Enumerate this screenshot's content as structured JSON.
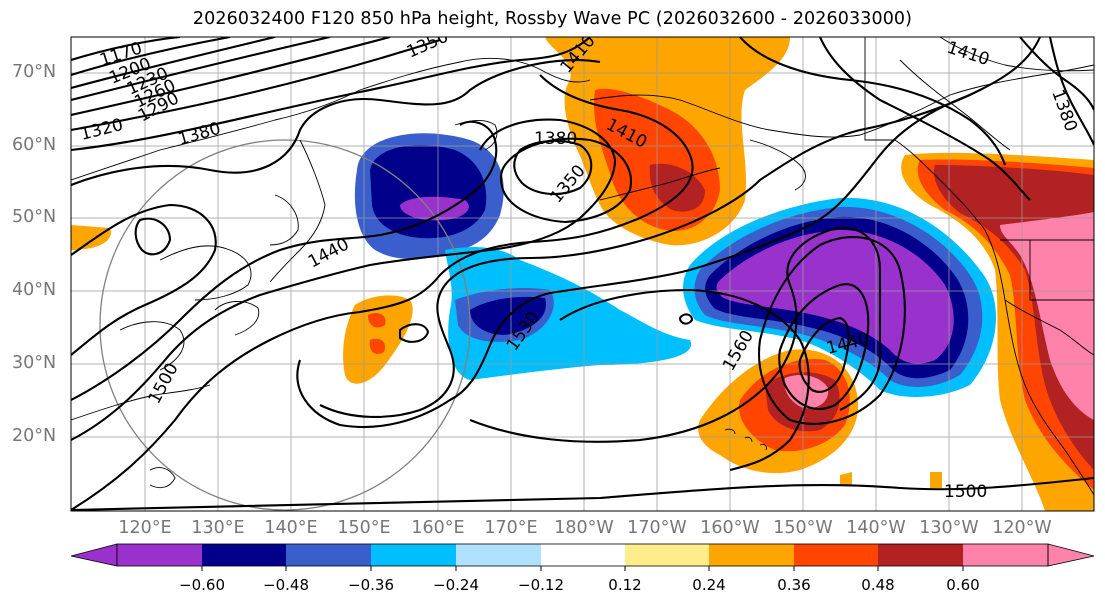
{
  "title": "2026032400 F120 850 hPa height, Rossby Wave PC (2026032600 - 2026033000)",
  "latitude_labels": [
    {
      "text": "70°N",
      "lat": 70
    },
    {
      "text": "60°N",
      "lat": 60
    },
    {
      "text": "50°N",
      "lat": 50
    },
    {
      "text": "40°N",
      "lat": 40
    },
    {
      "text": "30°N",
      "lat": 30
    },
    {
      "text": "20°N",
      "lat": 20
    }
  ],
  "longitude_labels": [
    {
      "text": "120°E",
      "lon": 120
    },
    {
      "text": "130°E",
      "lon": 130
    },
    {
      "text": "140°E",
      "lon": 140
    },
    {
      "text": "150°E",
      "lon": 150
    },
    {
      "text": "160°E",
      "lon": 160
    },
    {
      "text": "170°E",
      "lon": 170
    },
    {
      "text": "180°W",
      "lon": 180
    },
    {
      "text": "170°W",
      "lon": 190
    },
    {
      "text": "160°W",
      "lon": 200
    },
    {
      "text": "150°W",
      "lon": 210
    },
    {
      "text": "140°W",
      "lon": 220
    },
    {
      "text": "130°W",
      "lon": 230
    },
    {
      "text": "120°W",
      "lon": 240
    }
  ],
  "contour_labels": [
    "1170",
    "1200",
    "1230",
    "1260",
    "1290",
    "1320",
    "1380",
    "1350",
    "1410",
    "1380",
    "1410",
    "1350",
    "1440",
    "1530",
    "1500",
    "1560",
    "1440",
    "1500",
    "1410",
    "1380"
  ],
  "colorbar": {
    "ticks": [
      "−0.60",
      "−0.48",
      "−0.36",
      "−0.24",
      "−0.12",
      "0.12",
      "0.24",
      "0.36",
      "0.48",
      "0.60"
    ],
    "colors": [
      "#9932cc",
      "#00008b",
      "#3a5fcd",
      "#00bfff",
      "#b0e2ff",
      "#ffffff",
      "#ffec8b",
      "#ffa500",
      "#ff4500",
      "#b22222",
      "#ff82ab"
    ]
  }
}
